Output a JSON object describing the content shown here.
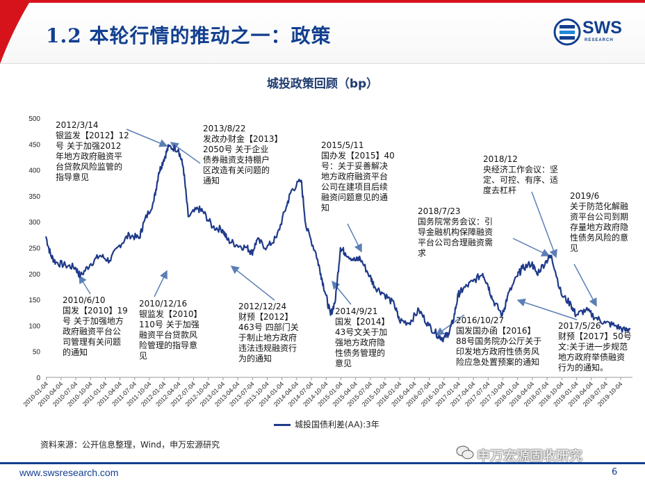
{
  "header": {
    "title": "1.2 本轮行情的推动之一：政策",
    "logo_text": "SWS",
    "logo_sub": "RESEARCH"
  },
  "colors": {
    "brand_blue": "#123f8f",
    "accent_red": "#d6131b",
    "series": "#1f3a8a"
  },
  "chart_data": {
    "type": "line",
    "title": "城投政策回顾（bp）",
    "ylim": [
      0,
      500
    ],
    "yticks": [
      0,
      50,
      100,
      150,
      200,
      250,
      300,
      350,
      400,
      450,
      500
    ],
    "xticks": [
      "2010-01-04",
      "2010-04-04",
      "2010-07-04",
      "2010-10-04",
      "2011-01-04",
      "2011-04-04",
      "2011-07-04",
      "2011-10-04",
      "2012-01-04",
      "2012-04-04",
      "2012-07-04",
      "2012-10-04",
      "2013-01-04",
      "2013-04-04",
      "2013-07-04",
      "2013-10-04",
      "2014-01-04",
      "2014-04-04",
      "2014-07-04",
      "2014-10-04",
      "2015-01-04",
      "2015-04-04",
      "2015-07-04",
      "2015-10-04",
      "2016-01-04",
      "2016-04-04",
      "2016-07-04",
      "2016-10-04",
      "2017-01-04",
      "2017-04-04",
      "2017-07-04",
      "2017-10-04",
      "2018-01-04",
      "2018-04-04",
      "2018-07-04",
      "2018-10-04",
      "2019-01-04",
      "2019-04-04",
      "2019-07-04",
      "2019-10-04"
    ],
    "series": [
      {
        "name": "城投国债利差(AA):3年",
        "x": [
          "2010-01",
          "2010-02",
          "2010-03",
          "2010-05",
          "2010-07",
          "2010-08",
          "2010-10",
          "2010-12",
          "2011-02",
          "2011-04",
          "2011-06",
          "2011-08",
          "2011-09",
          "2011-11",
          "2011-12",
          "2012-01",
          "2012-02",
          "2012-04",
          "2012-05",
          "2012-06",
          "2012-08",
          "2012-09",
          "2012-11",
          "2013-01",
          "2013-02",
          "2013-04",
          "2013-06",
          "2013-07",
          "2013-08",
          "2013-10",
          "2013-12",
          "2014-02",
          "2014-03",
          "2014-05",
          "2014-06",
          "2014-08",
          "2014-09",
          "2014-10",
          "2014-11",
          "2014-12",
          "2015-01",
          "2015-02",
          "2015-04",
          "2015-05",
          "2015-07",
          "2015-08",
          "2015-10",
          "2015-12",
          "2016-01",
          "2016-03",
          "2016-05",
          "2016-07",
          "2016-09",
          "2016-10",
          "2016-11",
          "2016-12",
          "2017-01",
          "2017-02",
          "2017-04",
          "2017-06",
          "2017-07",
          "2017-08",
          "2017-10",
          "2017-11",
          "2018-01",
          "2018-02",
          "2018-04",
          "2018-05",
          "2018-07",
          "2018-08",
          "2018-10",
          "2018-12",
          "2019-01",
          "2019-03",
          "2019-05",
          "2019-07",
          "2019-09",
          "2019-11",
          "2019-12"
        ],
        "y": [
          272,
          235,
          222,
          216,
          212,
          195,
          218,
          235,
          225,
          255,
          275,
          268,
          300,
          340,
          395,
          420,
          445,
          440,
          405,
          310,
          325,
          320,
          290,
          285,
          265,
          255,
          250,
          240,
          265,
          250,
          270,
          330,
          360,
          380,
          290,
          240,
          200,
          160,
          120,
          150,
          250,
          240,
          225,
          230,
          195,
          175,
          160,
          140,
          110,
          105,
          130,
          100,
          80,
          75,
          85,
          110,
          160,
          170,
          185,
          200,
          180,
          150,
          120,
          155,
          195,
          210,
          220,
          200,
          225,
          235,
          160,
          140,
          120,
          130,
          115,
          105,
          100,
          90,
          95
        ]
      }
    ],
    "annotations": [
      {
        "lines": [
          "2012/3/14",
          "银监发【2012】12",
          "号 关于加强2012",
          "年地方政府融资平",
          "台贷款风险监管的",
          "指导意见"
        ]
      },
      {
        "lines": [
          "2013/8/22",
          "发改办财金【2013】",
          "2050号 关于企业",
          "债券融资支持棚户",
          "区改造有关问题的",
          "通知"
        ]
      },
      {
        "lines": [
          "2015/5/11",
          "国办发【2015】40",
          "号：关于妥善解决",
          "地方政府融资平台",
          "公司在建项目后续",
          "融资问题意见的通",
          "知"
        ]
      },
      {
        "lines": [
          "2018/12",
          "央经济工作会议：坚",
          "定、可控、有序、适",
          "度去杠杆"
        ]
      },
      {
        "lines": [
          "2019/6",
          "关于防范化解融",
          "资平台公司到期",
          "存量地方政府隐",
          "性债务风险的意",
          "见"
        ]
      },
      {
        "lines": [
          "2018/7/23",
          "国务院常务会议：引",
          "导金融机构保障融资",
          "平台公司合理融资需",
          "求"
        ]
      },
      {
        "lines": [
          "2010/6/10",
          "国发【2010】19",
          "号 关于加强地方",
          "政府融资平台公",
          "司管理有关问题",
          "的通知"
        ]
      },
      {
        "lines": [
          "2010/12/16",
          "银监发【2010】",
          "110号 关于加强",
          "融资平台贷款风",
          "险管理的指导意",
          "见"
        ]
      },
      {
        "lines": [
          "2012/12/24",
          "财预【2012】",
          "463号 四部门关",
          "于制止地方政府",
          "违法违规融资行",
          "为的通知"
        ]
      },
      {
        "lines": [
          "2014/9/21",
          "国发【2014】",
          "43号文关于加",
          "强地方政府隐",
          "性债务管理的",
          "意见"
        ]
      },
      {
        "lines": [
          "2016/10/27",
          "国发国办函【2016】",
          "88号国务院办公厅关于",
          "印发地方政府性债务风",
          "险应急处置预案的通知"
        ]
      },
      {
        "lines": [
          "2017/5/26",
          "财预【2017】50号",
          "文:关于进一步规范",
          "地方政府举债融资",
          "行为的通知。"
        ]
      }
    ]
  },
  "source": "资料来源：公开信息整理，Wind，申万宏源研究",
  "watermark": "申万宏源固收研究",
  "footer": {
    "url": "www.swsresearch.com",
    "page": "6"
  }
}
